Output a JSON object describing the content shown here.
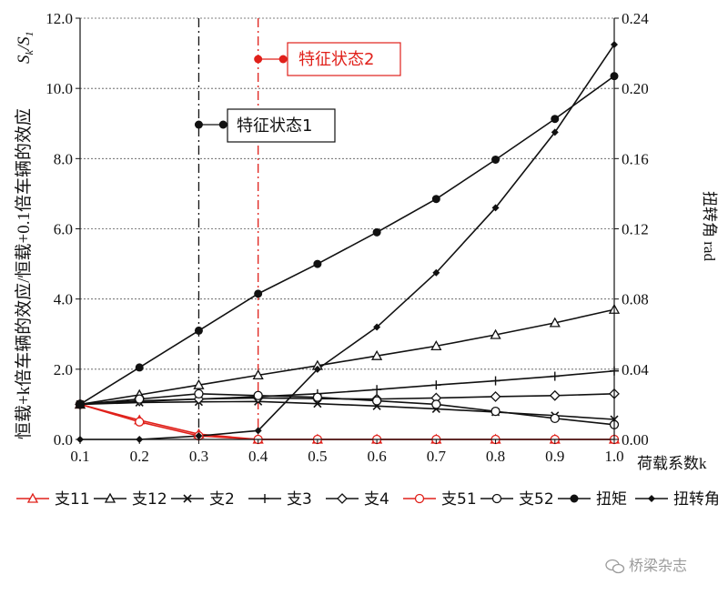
{
  "chart_data": {
    "type": "line",
    "x": [
      0.1,
      0.2,
      0.3,
      0.4,
      0.5,
      0.6,
      0.7,
      0.8,
      0.9,
      1.0
    ],
    "xticks": [
      "0.1",
      "0.2",
      "0.3",
      "0.4",
      "0.5",
      "0.6",
      "0.7",
      "0.8",
      "0.9",
      "1.0"
    ],
    "xlim": [
      0.1,
      1.0
    ],
    "ylim": [
      0,
      12
    ],
    "yticks": [
      "0.0",
      "2.0",
      "4.0",
      "6.0",
      "8.0",
      "10.0",
      "12.0"
    ],
    "y2lim": [
      0,
      0.24
    ],
    "y2ticks": [
      "0.00",
      "0.04",
      "0.08",
      "0.12",
      "0.16",
      "0.20",
      "0.24"
    ],
    "xlabel": "荷载系数k",
    "ylabel": "恒载+k倍车辆的效应/恒载+0.1倍车辆的效应",
    "ylabel_suffix": "Sk/S1",
    "y2label": "扭转角 rad",
    "grid": true,
    "legend_position": "bottom",
    "series": [
      {
        "name": "支11",
        "axis": "left",
        "color": "#e0201a",
        "marker": "triangle-open",
        "values": [
          1.0,
          0.55,
          0.15,
          0.0,
          0.0,
          0.0,
          0.0,
          0.0,
          0.0,
          0.0
        ]
      },
      {
        "name": "支12",
        "axis": "left",
        "color": "#111111",
        "marker": "triangle-open",
        "values": [
          1.0,
          1.27,
          1.55,
          1.83,
          2.1,
          2.38,
          2.66,
          2.98,
          3.32,
          3.7
        ]
      },
      {
        "name": "支2",
        "axis": "left",
        "color": "#111111",
        "marker": "x",
        "values": [
          1.0,
          1.05,
          1.07,
          1.08,
          1.02,
          0.95,
          0.87,
          0.78,
          0.68,
          0.57
        ]
      },
      {
        "name": "支3",
        "axis": "left",
        "color": "#111111",
        "marker": "plus",
        "values": [
          1.0,
          1.08,
          1.15,
          1.22,
          1.3,
          1.42,
          1.55,
          1.67,
          1.8,
          1.95
        ]
      },
      {
        "name": "支4",
        "axis": "left",
        "color": "#111111",
        "marker": "diamond-open",
        "values": [
          1.0,
          1.1,
          1.15,
          1.18,
          1.16,
          1.15,
          1.18,
          1.22,
          1.25,
          1.3
        ]
      },
      {
        "name": "支51",
        "axis": "left",
        "color": "#e0201a",
        "marker": "circle-open",
        "values": [
          1.0,
          0.5,
          0.1,
          0.0,
          0.0,
          0.0,
          0.0,
          0.0,
          0.0,
          0.0
        ]
      },
      {
        "name": "支52",
        "axis": "left",
        "color": "#111111",
        "marker": "circle-open",
        "values": [
          1.0,
          1.15,
          1.3,
          1.25,
          1.2,
          1.1,
          1.0,
          0.8,
          0.6,
          0.42
        ]
      },
      {
        "name": "扭矩",
        "axis": "left",
        "color": "#111111",
        "marker": "circle-filled",
        "values": [
          1.0,
          2.05,
          3.1,
          4.15,
          5.0,
          5.9,
          6.85,
          7.97,
          9.13,
          10.35
        ]
      },
      {
        "name": "扭转角",
        "axis": "right",
        "color": "#111111",
        "marker": "diamond-filled",
        "values": [
          0.0,
          0.0,
          0.002,
          0.005,
          0.04,
          0.064,
          0.095,
          0.132,
          0.175,
          0.225
        ]
      }
    ],
    "annotations": [
      {
        "text": "特征状态1",
        "x": 0.3,
        "color": "#111111",
        "line": "dash-dot"
      },
      {
        "text": "特征状态2",
        "x": 0.4,
        "color": "#e0201a",
        "line": "dash-dot"
      }
    ]
  },
  "watermark": {
    "text": "桥梁杂志",
    "icon": "wechat-icon"
  }
}
